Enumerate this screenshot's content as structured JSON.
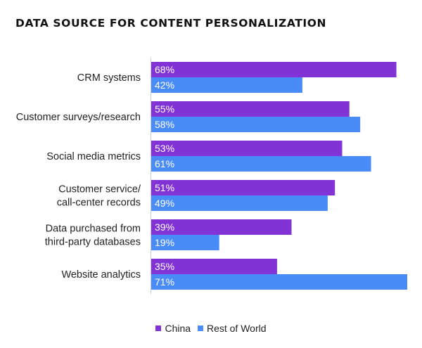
{
  "chart_data": {
    "type": "bar",
    "orientation": "horizontal",
    "title": "DATA SOURCE FOR CONTENT PERSONALIZATION",
    "xlabel": "",
    "ylabel": "",
    "xlim": [
      0,
      71
    ],
    "grid": false,
    "legend_position": "bottom",
    "categories": [
      [
        "CRM systems"
      ],
      [
        "Customer surveys/research"
      ],
      [
        "Social media metrics"
      ],
      [
        "Customer service/",
        "call-center records"
      ],
      [
        "Data purchased from",
        "third-party databases"
      ],
      [
        "Website analytics"
      ]
    ],
    "series": [
      {
        "name": "China",
        "color": "#8133d5",
        "values": [
          68,
          55,
          53,
          51,
          39,
          35
        ],
        "labels": [
          "68%",
          "55%",
          "53%",
          "51%",
          "39%",
          "35%"
        ]
      },
      {
        "name": "Rest of World",
        "color": "#4a8cf7",
        "values": [
          42,
          58,
          61,
          49,
          19,
          71
        ],
        "labels": [
          "42%",
          "58%",
          "61%",
          "49%",
          "19%",
          "71%"
        ]
      }
    ]
  }
}
